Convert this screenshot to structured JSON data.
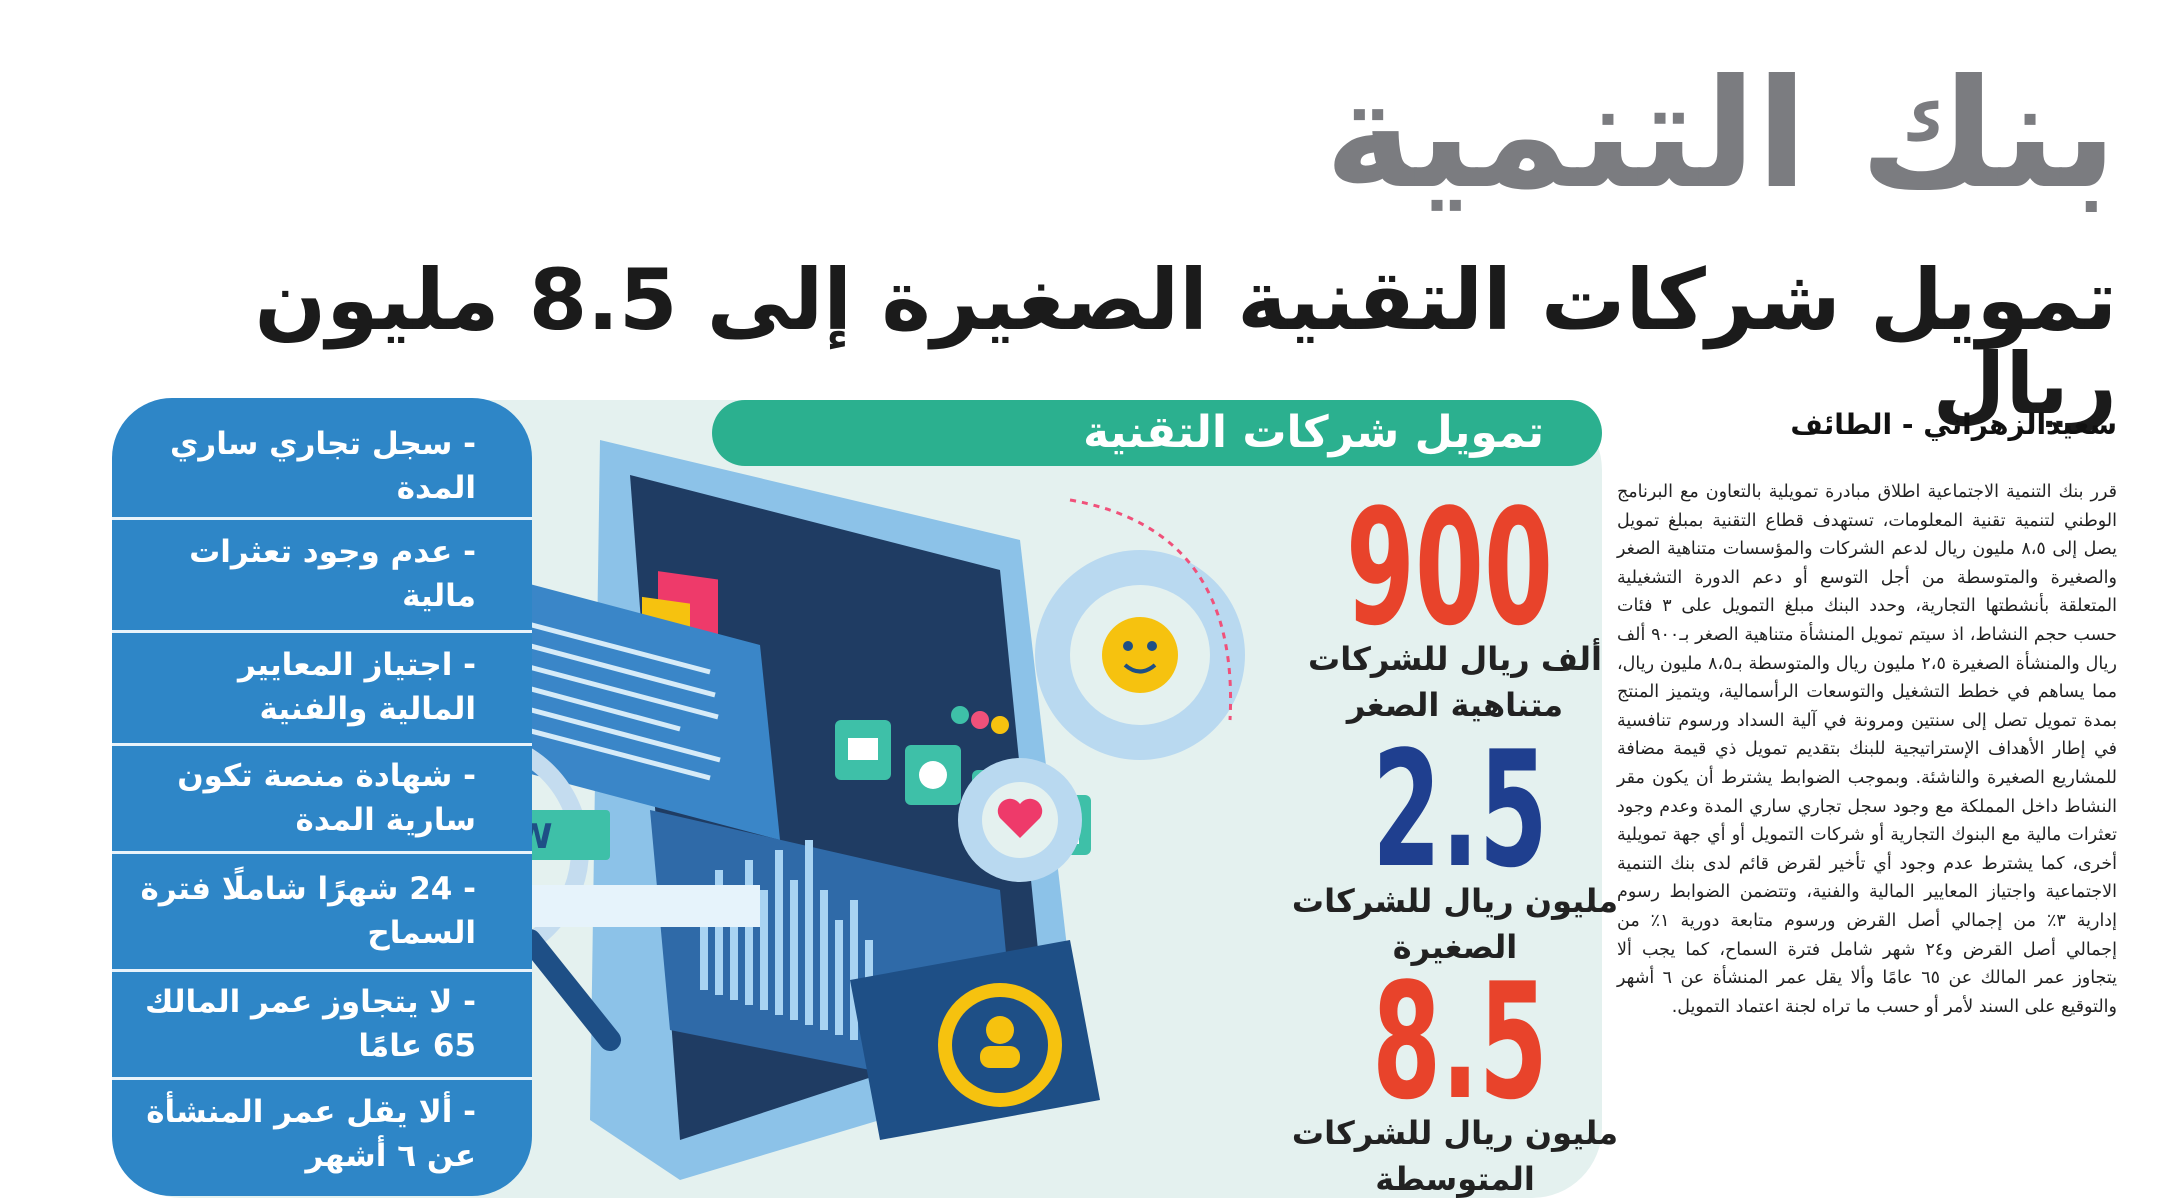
{
  "headline": {
    "title": "بنك التنمية",
    "subtitle": "تمويل شركات التقنية الصغيرة إلى 8.5 مليون ريال"
  },
  "article": {
    "byline": "سعيدالزهراني - الطائف",
    "body": "قرر بنك التنمية الاجتماعية اطلاق مبادرة تمويلية بالتعاون مع البرنامج الوطني لتنمية تقنية المعلومات، تستهدف قطاع التقنية بمبلغ تمويل يصل إلى ٨،٥ مليون ريال لدعم الشركات والمؤسسات متناهية الصغر والصغيرة والمتوسطة من أجل التوسع أو دعم الدورة التشغيلية المتعلقة بأنشطتها التجارية، وحدد البنك مبلغ التمويل على ٣ فئات حسب حجم النشاط، اذ سيتم تمويل المنشأة متناهية الصغر بـ٩٠٠ ألف ريال والمنشأة الصغيرة ٢،٥ مليون ريال والمتوسطة بـ٨،٥ مليون ريال، مما يساهم في خطط التشغيل والتوسعات الرأسمالية، ويتميز المنتج بمدة تمويل تصل إلى سنتين ومرونة في آلية السداد ورسوم تنافسية في إطار الأهداف الإستراتيجية للبنك بتقديم تمويل ذي قيمة مضافة للمشاريع الصغيرة والناشئة. وبموجب الضوابط يشترط أن يكون مقر النشاط داخل المملكة مع وجود سجل تجاري ساري المدة وعدم وجود تعثرات مالية مع البنوك التجارية أو شركات التمويل أو أي جهة تمويلية أخرى، كما يشترط عدم وجود أي تأخير لقرض قائم لدى بنك التنمية الاجتماعية واجتياز المعايير المالية والفنية، وتتضمن الضوابط رسوم إدارية ٣٪ من إجمالي أصل القرض ورسوم متابعة دورية ١٪ من إجمالي أصل القرض و٢٤ شهر شامل فترة السماح، كما يجب ألا يتجاوز عمر المالك عن ٦٥ عامًا وألا يقل عمر المنشأة عن ٦ أشهر والتوقيع على السند لأمر أو حسب ما تراه لجنة اعتماد التمويل."
  },
  "infographic": {
    "banner": "تمويل شركات التقنية",
    "requirements": [
      "- سجل تجاري ساري المدة",
      "- عدم وجود تعثرات مالية",
      "- اجتياز المعايير المالية والفنية",
      "- شهادة منصة تكون سارية المدة",
      "- 24 شهرًا شاملًا فترة السماح",
      "- لا يتجاوز عمر المالك 65 عامًا",
      "- ألا يقل عمر المنشأة عن ٦ أشهر"
    ],
    "stats": [
      {
        "value": "900",
        "label": "ألف ريال للشركات متناهية الصغر",
        "color": "#e8432b"
      },
      {
        "value": "2.5",
        "label": "مليون ريال للشركات الصغيرة",
        "color": "#1f3f8f"
      },
      {
        "value": "8.5",
        "label": "مليون ريال للشركات المتوسطة",
        "color": "#e8432b"
      }
    ],
    "illustration": {
      "web_label": "WWW",
      "icons": [
        "image-icon",
        "mail-icon",
        "gear-icon",
        "user-icon",
        "chart-icon",
        "chat-icon",
        "smile-icon",
        "heart-icon",
        "user-circle-icon",
        "magnifier-icon"
      ]
    }
  }
}
